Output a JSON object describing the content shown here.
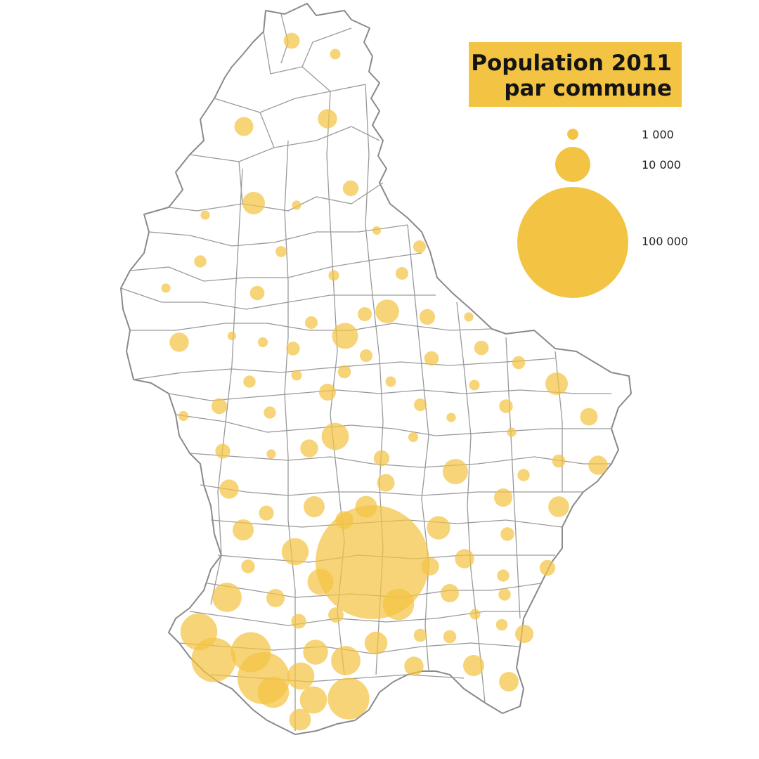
{
  "map": {
    "title_line1": "Population 2011",
    "title_line2": "par commune",
    "bubble_color": "#f3c443",
    "border_color": "#8a8a8a",
    "country_fill": "#ffffff"
  },
  "legend": {
    "entries": [
      {
        "label": "1 000",
        "value": 1000
      },
      {
        "label": "10 000",
        "value": 10000
      },
      {
        "label": "100 000",
        "value": 100000
      }
    ]
  }
}
